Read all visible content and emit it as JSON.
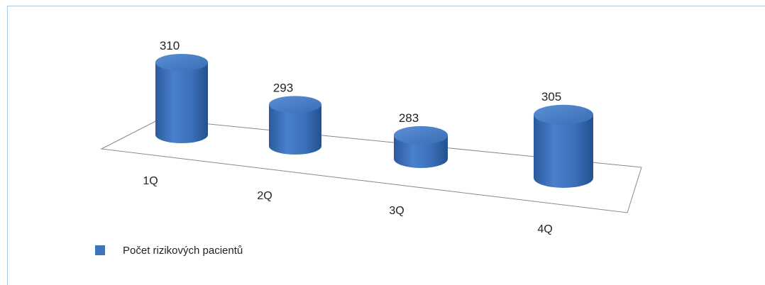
{
  "chart_data": {
    "type": "bar",
    "style": "3d-cylinder",
    "title": "",
    "xlabel": "",
    "ylabel": "",
    "categories": [
      "1Q",
      "2Q",
      "3Q",
      "4Q"
    ],
    "series": [
      {
        "name": "Počet rizikových pacientů",
        "values": [
          310,
          293,
          283,
          305
        ],
        "color": "#3e73be"
      }
    ],
    "data_labels": [
      "310",
      "293",
      "283",
      "305"
    ],
    "legend_position": "bottom-left",
    "grid": false
  }
}
